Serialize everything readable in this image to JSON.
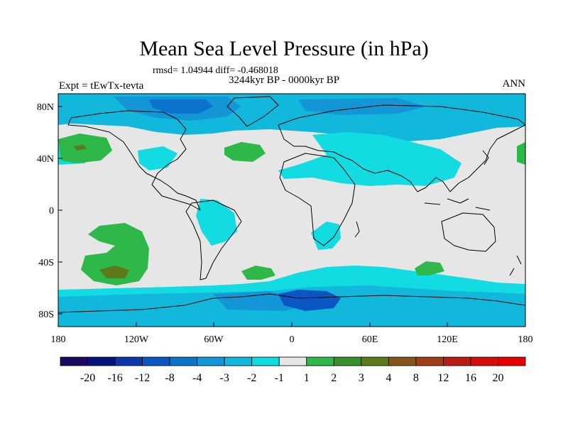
{
  "title": "Mean Sea Level Pressure (in hPa)",
  "stats": "rmsd= 1.04944 diff= -0.468018",
  "period": "3244kyr BP - 0000kyr BP",
  "experiment": "Expt = tEwTx-tevta",
  "season": "ANN",
  "lat_axis": [
    "80N",
    "40N",
    "0",
    "40S",
    "80S"
  ],
  "lon_axis": [
    "180",
    "120W",
    "60W",
    "0",
    "60E",
    "120E",
    "180"
  ],
  "colorbar": {
    "labels": [
      "-20",
      "-16",
      "-12",
      "-8",
      "-4",
      "-3",
      "-2",
      "-1",
      "1",
      "2",
      "3",
      "4",
      "8",
      "12",
      "16",
      "20"
    ],
    "colors": [
      "#1c0a60",
      "#05147a",
      "#0a38a8",
      "#0a56c2",
      "#0a74cc",
      "#1296d6",
      "#12b8dc",
      "#0fdce2",
      "#e6e6e6",
      "#2eb84a",
      "#3a9028",
      "#5c7a1a",
      "#84561c",
      "#a03c18",
      "#b81e16",
      "#d40c0c",
      "#e80000"
    ]
  },
  "palette": {
    "neutral": "#e6e6e6",
    "cyan": "#12dce2",
    "midblue": "#12b8dc",
    "blue": "#1296d6",
    "deepblue": "#0a74cc",
    "darkblue": "#0a56c2",
    "green": "#2eb84a",
    "olive": "#5c7a1a"
  }
}
